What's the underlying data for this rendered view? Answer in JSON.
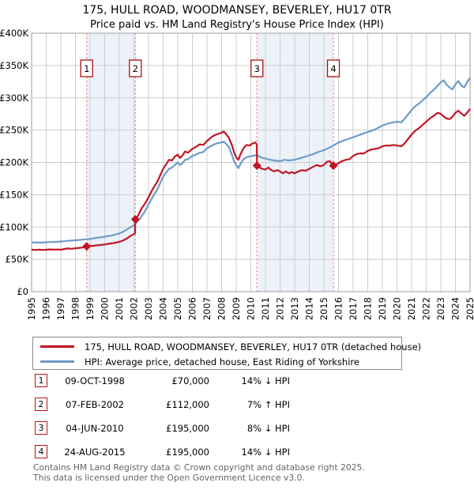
{
  "title": {
    "line1": "175, HULL ROAD, WOODMANSEY, BEVERLEY, HU17 0TR",
    "line2": "Price paid vs. HM Land Registry's House Price Index (HPI)"
  },
  "colors": {
    "price_line": "#c31426",
    "hpi_line": "#6d9bc7",
    "band_fill": "#edf2fa",
    "dashed_line": "#f08c8c",
    "marker_box_border": "#aa1111",
    "grid": "#cccccc",
    "axis_border": "#9e9e9e",
    "footer_text": "#646464"
  },
  "chart_data": {
    "type": "line",
    "title": "175, HULL ROAD, WOODMANSEY, BEVERLEY, HU17 0TR — Price paid vs. HPI",
    "xlabel": "",
    "ylabel": "",
    "x_min": 1995,
    "x_max": 2025,
    "y_max_k": 400,
    "y_step_k": 50,
    "y_tick_labels": [
      "£0",
      "£50K",
      "£100K",
      "£150K",
      "£200K",
      "£250K",
      "£300K",
      "£350K",
      "£400K"
    ],
    "x_tick_labels": [
      "1995",
      "1996",
      "1997",
      "1998",
      "1999",
      "2000",
      "2001",
      "2002",
      "2003",
      "2004",
      "2005",
      "2006",
      "2007",
      "2008",
      "2009",
      "2010",
      "2011",
      "2012",
      "2013",
      "2014",
      "2015",
      "2016",
      "2017",
      "2018",
      "2019",
      "2020",
      "2021",
      "2022",
      "2023",
      "2024",
      "2025"
    ],
    "grid": true,
    "legend_position": "below",
    "bands": [
      [
        1998.77,
        2002.1
      ],
      [
        2010.42,
        2015.65
      ]
    ],
    "sale_markers": [
      {
        "num": "1",
        "x": 1998.77,
        "y_k": 70
      },
      {
        "num": "2",
        "x": 2002.1,
        "y_k": 112
      },
      {
        "num": "3",
        "x": 2010.42,
        "y_k": 195
      },
      {
        "num": "4",
        "x": 2015.65,
        "y_k": 195
      }
    ],
    "series": [
      {
        "name": "175, HULL ROAD, WOODMANSEY, BEVERLEY, HU17 0TR (detached house)",
        "color": "#c31426",
        "points": [
          [
            1995,
            65
          ],
          [
            1995.25,
            64.5
          ],
          [
            1995.5,
            65.1
          ],
          [
            1995.75,
            64.6
          ],
          [
            1996,
            64.8
          ],
          [
            1996.25,
            65.3
          ],
          [
            1996.5,
            64.9
          ],
          [
            1996.75,
            65.2
          ],
          [
            1997,
            65
          ],
          [
            1997.25,
            66
          ],
          [
            1997.5,
            66.8
          ],
          [
            1997.75,
            66.3
          ],
          [
            1998,
            67
          ],
          [
            1998.25,
            67.8
          ],
          [
            1998.5,
            68.3
          ],
          [
            1998.77,
            70
          ],
          [
            1999,
            70.5
          ],
          [
            1999.25,
            71
          ],
          [
            1999.5,
            71.8
          ],
          [
            1999.75,
            72.3
          ],
          [
            2000,
            73
          ],
          [
            2000.25,
            74
          ],
          [
            2000.5,
            74.8
          ],
          [
            2000.75,
            75.8
          ],
          [
            2001,
            77
          ],
          [
            2001.25,
            79
          ],
          [
            2001.5,
            82
          ],
          [
            2001.75,
            86
          ],
          [
            2002,
            89
          ],
          [
            2002.08,
            90
          ],
          [
            2002.1,
            112
          ],
          [
            2002.3,
            118
          ],
          [
            2002.5,
            128
          ],
          [
            2002.75,
            136
          ],
          [
            2003,
            146
          ],
          [
            2003.2,
            155
          ],
          [
            2003.4,
            163
          ],
          [
            2003.6,
            170
          ],
          [
            2003.8,
            180
          ],
          [
            2004,
            190
          ],
          [
            2004.2,
            197
          ],
          [
            2004.4,
            204
          ],
          [
            2004.6,
            203
          ],
          [
            2004.8,
            209
          ],
          [
            2005,
            212
          ],
          [
            2005.15,
            207
          ],
          [
            2005.3,
            210
          ],
          [
            2005.5,
            217
          ],
          [
            2005.7,
            215
          ],
          [
            2006,
            221
          ],
          [
            2006.25,
            224
          ],
          [
            2006.5,
            228
          ],
          [
            2006.75,
            227
          ],
          [
            2007,
            233
          ],
          [
            2007.25,
            238
          ],
          [
            2007.5,
            242
          ],
          [
            2007.75,
            244
          ],
          [
            2008,
            246
          ],
          [
            2008.15,
            248
          ],
          [
            2008.3,
            244
          ],
          [
            2008.5,
            238
          ],
          [
            2008.7,
            227
          ],
          [
            2008.85,
            216
          ],
          [
            2009,
            208
          ],
          [
            2009.15,
            204
          ],
          [
            2009.3,
            213
          ],
          [
            2009.5,
            222
          ],
          [
            2009.7,
            227
          ],
          [
            2009.9,
            226
          ],
          [
            2010.1,
            229
          ],
          [
            2010.3,
            231
          ],
          [
            2010.41,
            228
          ],
          [
            2010.42,
            195
          ],
          [
            2010.6,
            192
          ],
          [
            2010.8,
            190
          ],
          [
            2011,
            189
          ],
          [
            2011.2,
            192
          ],
          [
            2011.4,
            188
          ],
          [
            2011.6,
            186
          ],
          [
            2011.8,
            188
          ],
          [
            2012,
            186
          ],
          [
            2012.2,
            183
          ],
          [
            2012.4,
            186
          ],
          [
            2012.6,
            183
          ],
          [
            2012.8,
            185
          ],
          [
            2013,
            183
          ],
          [
            2013.25,
            186
          ],
          [
            2013.5,
            188
          ],
          [
            2013.75,
            187
          ],
          [
            2014,
            190
          ],
          [
            2014.25,
            193
          ],
          [
            2014.5,
            196
          ],
          [
            2014.75,
            194
          ],
          [
            2015,
            196
          ],
          [
            2015.2,
            201
          ],
          [
            2015.4,
            202
          ],
          [
            2015.65,
            195
          ],
          [
            2015.85,
            197
          ],
          [
            2016,
            199
          ],
          [
            2016.25,
            202
          ],
          [
            2016.5,
            204
          ],
          [
            2016.75,
            205
          ],
          [
            2017,
            210
          ],
          [
            2017.25,
            213
          ],
          [
            2017.5,
            214
          ],
          [
            2017.75,
            214
          ],
          [
            2018,
            218
          ],
          [
            2018.25,
            220
          ],
          [
            2018.5,
            221
          ],
          [
            2018.75,
            222
          ],
          [
            2019,
            225
          ],
          [
            2019.25,
            226
          ],
          [
            2019.5,
            226
          ],
          [
            2019.75,
            227
          ],
          [
            2020,
            226
          ],
          [
            2020.3,
            225
          ],
          [
            2020.5,
            229
          ],
          [
            2020.75,
            236
          ],
          [
            2021,
            243
          ],
          [
            2021.25,
            249
          ],
          [
            2021.5,
            253
          ],
          [
            2021.75,
            258
          ],
          [
            2022,
            263
          ],
          [
            2022.25,
            268
          ],
          [
            2022.5,
            272
          ],
          [
            2022.8,
            277
          ],
          [
            2023,
            275
          ],
          [
            2023.2,
            271
          ],
          [
            2023.4,
            268
          ],
          [
            2023.6,
            267
          ],
          [
            2023.8,
            271
          ],
          [
            2024,
            277
          ],
          [
            2024.2,
            280
          ],
          [
            2024.4,
            276
          ],
          [
            2024.6,
            272
          ],
          [
            2024.8,
            277
          ],
          [
            2025,
            283
          ]
        ]
      },
      {
        "name": "HPI: Average price, detached house, East Riding of Yorkshire",
        "color": "#6d9bc7",
        "points": [
          [
            1995,
            76
          ],
          [
            1995.25,
            76.2
          ],
          [
            1995.5,
            75.8
          ],
          [
            1995.75,
            76
          ],
          [
            1996,
            76.3
          ],
          [
            1996.25,
            76.8
          ],
          [
            1996.5,
            77
          ],
          [
            1996.75,
            77.2
          ],
          [
            1997,
            77.5
          ],
          [
            1997.25,
            78
          ],
          [
            1997.5,
            78.6
          ],
          [
            1997.75,
            79
          ],
          [
            1998,
            79.5
          ],
          [
            1998.25,
            80
          ],
          [
            1998.5,
            80.5
          ],
          [
            1998.77,
            81
          ],
          [
            1999,
            81.5
          ],
          [
            1999.25,
            82.5
          ],
          [
            1999.5,
            83.5
          ],
          [
            1999.75,
            84
          ],
          [
            2000,
            85
          ],
          [
            2000.25,
            86
          ],
          [
            2000.5,
            87
          ],
          [
            2000.75,
            88.5
          ],
          [
            2001,
            90
          ],
          [
            2001.25,
            92.5
          ],
          [
            2001.5,
            96
          ],
          [
            2001.75,
            99.5
          ],
          [
            2002,
            103
          ],
          [
            2002.1,
            105
          ],
          [
            2002.3,
            110
          ],
          [
            2002.5,
            116
          ],
          [
            2002.75,
            124
          ],
          [
            2003,
            135
          ],
          [
            2003.2,
            143
          ],
          [
            2003.4,
            151
          ],
          [
            2003.6,
            158
          ],
          [
            2003.8,
            168
          ],
          [
            2004,
            178
          ],
          [
            2004.2,
            184
          ],
          [
            2004.4,
            190
          ],
          [
            2004.6,
            192
          ],
          [
            2004.8,
            196
          ],
          [
            2005,
            200
          ],
          [
            2005.15,
            196
          ],
          [
            2005.3,
            198
          ],
          [
            2005.5,
            204
          ],
          [
            2005.7,
            205
          ],
          [
            2006,
            210
          ],
          [
            2006.25,
            212
          ],
          [
            2006.5,
            215
          ],
          [
            2006.75,
            216
          ],
          [
            2007,
            222
          ],
          [
            2007.25,
            225
          ],
          [
            2007.5,
            228
          ],
          [
            2007.75,
            230
          ],
          [
            2008,
            231
          ],
          [
            2008.15,
            232
          ],
          [
            2008.3,
            229
          ],
          [
            2008.5,
            224
          ],
          [
            2008.7,
            212
          ],
          [
            2008.85,
            202
          ],
          [
            2009,
            196
          ],
          [
            2009.15,
            191
          ],
          [
            2009.3,
            198
          ],
          [
            2009.5,
            205
          ],
          [
            2009.7,
            208
          ],
          [
            2009.9,
            209
          ],
          [
            2010.1,
            210
          ],
          [
            2010.3,
            211
          ],
          [
            2010.42,
            211
          ],
          [
            2010.6,
            209
          ],
          [
            2010.8,
            207
          ],
          [
            2011,
            206
          ],
          [
            2011.3,
            204
          ],
          [
            2011.6,
            203
          ],
          [
            2012,
            202
          ],
          [
            2012.3,
            204
          ],
          [
            2012.6,
            203
          ],
          [
            2013,
            204
          ],
          [
            2013.3,
            206
          ],
          [
            2013.6,
            208
          ],
          [
            2014,
            211
          ],
          [
            2014.3,
            213
          ],
          [
            2014.6,
            216
          ],
          [
            2015,
            219
          ],
          [
            2015.3,
            222
          ],
          [
            2015.65,
            226
          ],
          [
            2016,
            231
          ],
          [
            2016.5,
            235
          ],
          [
            2017,
            239
          ],
          [
            2017.5,
            243
          ],
          [
            2018,
            247
          ],
          [
            2018.5,
            251
          ],
          [
            2019,
            257
          ],
          [
            2019.5,
            261
          ],
          [
            2019.75,
            262
          ],
          [
            2020,
            263
          ],
          [
            2020.3,
            262
          ],
          [
            2020.5,
            267
          ],
          [
            2020.75,
            274
          ],
          [
            2021,
            281
          ],
          [
            2021.25,
            287
          ],
          [
            2021.5,
            291
          ],
          [
            2021.75,
            296
          ],
          [
            2022,
            301
          ],
          [
            2022.25,
            307
          ],
          [
            2022.5,
            312
          ],
          [
            2022.75,
            318
          ],
          [
            2023,
            324
          ],
          [
            2023.2,
            327
          ],
          [
            2023.4,
            320
          ],
          [
            2023.6,
            316
          ],
          [
            2023.8,
            313
          ],
          [
            2024,
            321
          ],
          [
            2024.2,
            326
          ],
          [
            2024.4,
            319
          ],
          [
            2024.6,
            316
          ],
          [
            2024.8,
            324
          ],
          [
            2025,
            331
          ]
        ]
      }
    ]
  },
  "legend": {
    "entries": [
      {
        "label": "175, HULL ROAD, WOODMANSEY, BEVERLEY, HU17 0TR (detached house)",
        "color": "#c31426"
      },
      {
        "label": "HPI: Average price, detached house, East Riding of Yorkshire",
        "color": "#6d9bc7"
      }
    ]
  },
  "sales": [
    {
      "num": "1",
      "date": "09-OCT-1998",
      "price": "£70,000",
      "vs_hpi": "14% ↓ HPI"
    },
    {
      "num": "2",
      "date": "07-FEB-2002",
      "price": "£112,000",
      "vs_hpi": "7% ↑ HPI"
    },
    {
      "num": "3",
      "date": "04-JUN-2010",
      "price": "£195,000",
      "vs_hpi": "8% ↓ HPI"
    },
    {
      "num": "4",
      "date": "24-AUG-2015",
      "price": "£195,000",
      "vs_hpi": "14% ↓ HPI"
    }
  ],
  "footer": {
    "line1": "Contains HM Land Registry data © Crown copyright and database right 2025.",
    "line2": "This data is licensed under the Open Government Licence v3.0."
  }
}
